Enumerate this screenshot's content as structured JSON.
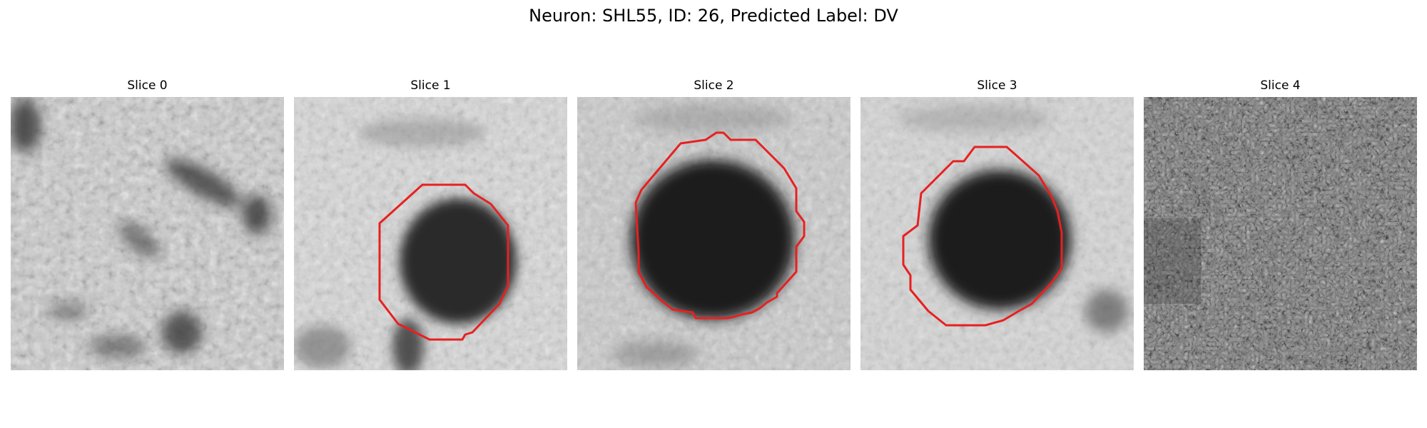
{
  "figure": {
    "title": "Neuron: SHL55, ID: 26, Predicted Label: DV"
  },
  "colors": {
    "outline": "#e82020",
    "background": "#ffffff"
  },
  "panels": [
    {
      "title": "Slice 0",
      "has_outline": false
    },
    {
      "title": "Slice 1",
      "has_outline": true
    },
    {
      "title": "Slice 2",
      "has_outline": true
    },
    {
      "title": "Slice 3",
      "has_outline": true
    },
    {
      "title": "Slice 4",
      "has_outline": false
    }
  ]
}
